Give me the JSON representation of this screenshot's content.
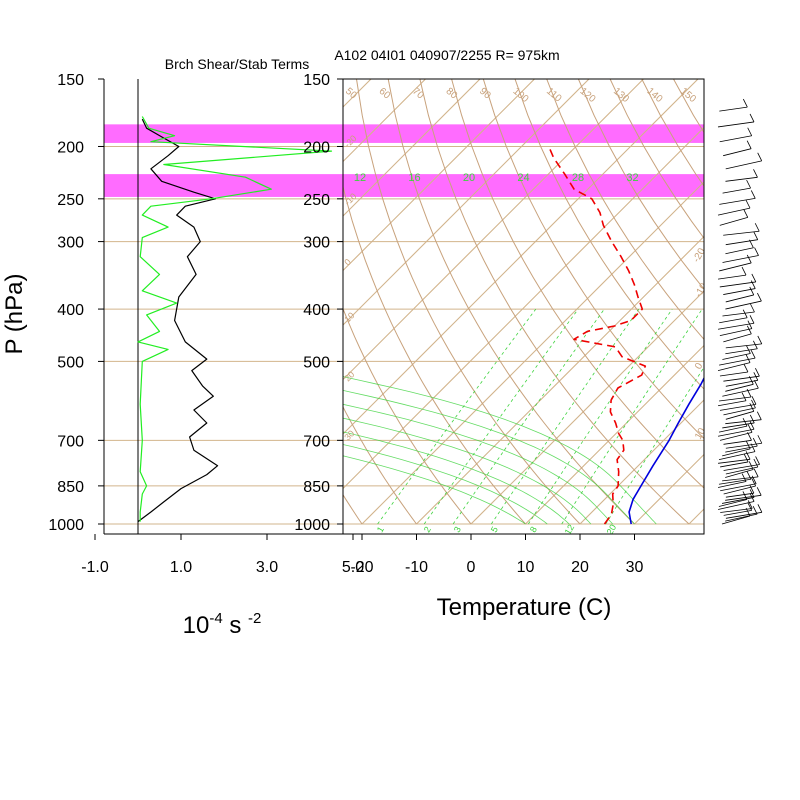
{
  "header": {
    "left_title": "Brch Shear/Stab Terms",
    "right_title": "A102 04I01 040907/2255 R= 975km"
  },
  "y_axis": {
    "label": "P (hPa)",
    "ticks": [
      150,
      200,
      250,
      300,
      400,
      500,
      700,
      850,
      1000
    ],
    "tick_labels": [
      "150",
      "200",
      "250",
      "300",
      "400",
      "500",
      "700",
      "850",
      "1000"
    ]
  },
  "left_panel": {
    "x_ticks": [
      "-1.0",
      "1.0",
      "3.0",
      "5.0"
    ],
    "x_label_base": "10",
    "x_label_exp1": "-4",
    "x_label_mid": " s ",
    "x_label_exp2": "-2"
  },
  "right_panel": {
    "x_ticks": [
      "-20",
      "-10",
      "0",
      "10",
      "20",
      "30"
    ],
    "x_label": "Temperature (C)",
    "dry_adiabat_labels": [
      "50",
      "60",
      "70",
      "80",
      "90",
      "100",
      "110",
      "120",
      "130",
      "140",
      "150"
    ],
    "mixing_ratio_top_labels": [
      "12",
      "16",
      "20",
      "24",
      "28",
      "32"
    ],
    "mixing_ratio_bottom_labels": [
      "1",
      "2",
      "3",
      "5",
      "8",
      "12",
      "20"
    ],
    "isotherm_labels": [
      "-20",
      "-10",
      "0",
      "10",
      "20",
      "30"
    ]
  },
  "colors": {
    "background": "#ffffff",
    "axes": "#000000",
    "grid": "#d2b48c",
    "dry_adiabat": "#c8a27c",
    "mixing_ratio": "#3fd33f",
    "highlight_band": "#ff6cff",
    "temperature": "#0000dd",
    "dewpoint": "#ee0000",
    "shear_term": "#000000",
    "stab_term": "#22ee22",
    "barb": "#000000"
  },
  "chart_data": [
    {
      "type": "line",
      "panel": "Brch Shear/Stab Terms",
      "x_units": "10^-4 s^-2",
      "y_units": "hPa",
      "xlim": [
        -1.0,
        5.0
      ],
      "ylim": [
        1000,
        150
      ],
      "y_scale": "log",
      "highlight_bands_hPa": [
        [
          182,
          197
        ],
        [
          225,
          248
        ]
      ],
      "series": [
        {
          "color": "black",
          "points": [
            [
              0.1,
              178
            ],
            [
              0.2,
              185
            ],
            [
              0.55,
              192
            ],
            [
              0.95,
              200
            ],
            [
              0.7,
              208
            ],
            [
              0.3,
              220
            ],
            [
              0.55,
              232
            ],
            [
              1.3,
              243
            ],
            [
              1.8,
              250
            ],
            [
              1.1,
              258
            ],
            [
              0.9,
              268
            ],
            [
              1.3,
              282
            ],
            [
              1.45,
              300
            ],
            [
              1.15,
              320
            ],
            [
              1.35,
              345
            ],
            [
              0.95,
              380
            ],
            [
              0.85,
              420
            ],
            [
              1.1,
              460
            ],
            [
              1.6,
              495
            ],
            [
              1.25,
              520
            ],
            [
              1.5,
              555
            ],
            [
              1.75,
              580
            ],
            [
              1.3,
              615
            ],
            [
              1.6,
              650
            ],
            [
              1.2,
              690
            ],
            [
              1.3,
              730
            ],
            [
              1.85,
              780
            ],
            [
              1.6,
              810
            ],
            [
              1.0,
              860
            ],
            [
              0.6,
              910
            ],
            [
              0.3,
              950
            ],
            [
              0.0,
              990
            ]
          ]
        },
        {
          "color": "green",
          "points": [
            [
              0.1,
              176
            ],
            [
              0.25,
              185
            ],
            [
              0.85,
              191
            ],
            [
              0.3,
              196
            ],
            [
              4.5,
              204
            ],
            [
              0.6,
              216
            ],
            [
              2.5,
              228
            ],
            [
              3.1,
              240
            ],
            [
              1.7,
              250
            ],
            [
              0.3,
              258
            ],
            [
              0.1,
              268
            ],
            [
              0.7,
              282
            ],
            [
              0.1,
              295
            ],
            [
              0.05,
              320
            ],
            [
              0.5,
              345
            ],
            [
              0.1,
              370
            ],
            [
              0.9,
              390
            ],
            [
              0.2,
              410
            ],
            [
              0.5,
              440
            ],
            [
              0.0,
              460
            ],
            [
              0.7,
              475
            ],
            [
              0.1,
              500
            ],
            [
              0.05,
              600
            ],
            [
              0.1,
              700
            ],
            [
              0.05,
              800
            ],
            [
              0.2,
              850
            ],
            [
              0.1,
              880
            ],
            [
              0.05,
              950
            ],
            [
              0.05,
              990
            ]
          ]
        }
      ]
    },
    {
      "type": "line",
      "panel": "Skew-T log-P",
      "x_units": "C",
      "y_units": "hPa",
      "xlim": [
        -23,
        43
      ],
      "ylim": [
        1000,
        150
      ],
      "y_scale": "log",
      "skew": "45 degrees",
      "highlight_bands_hPa": [
        [
          182,
          197
        ],
        [
          225,
          248
        ]
      ],
      "series": [
        {
          "color": "blue",
          "points": [
            [
              29.4,
              1000
            ],
            [
              26.8,
              950
            ],
            [
              25.2,
              900
            ],
            [
              24.2,
              850
            ],
            [
              22.7,
              780
            ],
            [
              21.0,
              700
            ],
            [
              19.5,
              650
            ],
            [
              18.0,
              600
            ],
            [
              16.5,
              550
            ],
            [
              14.5,
              500
            ],
            [
              11.5,
              450
            ],
            [
              7.5,
              400
            ],
            [
              2.5,
              350
            ],
            [
              -3.5,
              300
            ],
            [
              -8.5,
              260
            ],
            [
              -11.5,
              230
            ],
            [
              -18.5,
              200
            ],
            [
              -24.5,
              180
            ],
            [
              -31.5,
              165
            ]
          ]
        },
        {
          "color": "red",
          "dash": true,
          "points": [
            [
              24.5,
              1000
            ],
            [
              24.0,
              960
            ],
            [
              22.5,
              920
            ],
            [
              20.5,
              880
            ],
            [
              20.0,
              850
            ],
            [
              17.5,
              800
            ],
            [
              15.0,
              760
            ],
            [
              14.5,
              730
            ],
            [
              12.5,
              700
            ],
            [
              10.5,
              680
            ],
            [
              8.0,
              650
            ],
            [
              5.0,
              620
            ],
            [
              3.0,
              590
            ],
            [
              2.0,
              560
            ],
            [
              4.0,
              530
            ],
            [
              3.0,
              510
            ],
            [
              -3.0,
              490
            ],
            [
              -6.0,
              470
            ],
            [
              -15.0,
              455
            ],
            [
              -14.0,
              440
            ],
            [
              -10.0,
              430
            ],
            [
              -8.0,
              420
            ],
            [
              -8.0,
              400
            ],
            [
              -11.0,
              380
            ],
            [
              -14.0,
              360
            ],
            [
              -17.5,
              340
            ],
            [
              -21.5,
              320
            ],
            [
              -26.0,
              300
            ],
            [
              -30.5,
              280
            ],
            [
              -33.5,
              265
            ],
            [
              -37.5,
              250
            ],
            [
              -42.5,
              240
            ],
            [
              -47.0,
              225
            ],
            [
              -52.0,
              210
            ],
            [
              -55.0,
              200
            ]
          ]
        }
      ]
    }
  ]
}
